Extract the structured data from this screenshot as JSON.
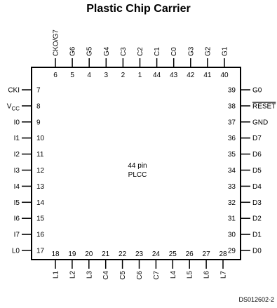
{
  "title": "Plastic Chip Carrier",
  "package": {
    "line1": "44 pin",
    "line2": "PLCC"
  },
  "figure_id": "DS012602-2",
  "pins": {
    "top": [
      {
        "num": "6",
        "sig": "CKO/G7"
      },
      {
        "num": "5",
        "sig": "G6"
      },
      {
        "num": "4",
        "sig": "G5"
      },
      {
        "num": "3",
        "sig": "G4"
      },
      {
        "num": "2",
        "sig": "C3"
      },
      {
        "num": "1",
        "sig": "C2"
      },
      {
        "num": "44",
        "sig": "C1"
      },
      {
        "num": "43",
        "sig": "C0"
      },
      {
        "num": "42",
        "sig": "G3"
      },
      {
        "num": "41",
        "sig": "G2"
      },
      {
        "num": "40",
        "sig": "G1"
      }
    ],
    "left": [
      {
        "num": "7",
        "sig": "CKI"
      },
      {
        "num": "8",
        "sig": "V",
        "sub": "CC"
      },
      {
        "num": "9",
        "sig": "I0"
      },
      {
        "num": "10",
        "sig": "I1"
      },
      {
        "num": "11",
        "sig": "I2"
      },
      {
        "num": "12",
        "sig": "I3"
      },
      {
        "num": "13",
        "sig": "I4"
      },
      {
        "num": "14",
        "sig": "I5"
      },
      {
        "num": "15",
        "sig": "I6"
      },
      {
        "num": "16",
        "sig": "I7"
      },
      {
        "num": "17",
        "sig": "L0"
      }
    ],
    "right": [
      {
        "num": "39",
        "sig": "G0"
      },
      {
        "num": "38",
        "sig": "RESET",
        "overline": true
      },
      {
        "num": "37",
        "sig": "GND"
      },
      {
        "num": "36",
        "sig": "D7"
      },
      {
        "num": "35",
        "sig": "D6"
      },
      {
        "num": "34",
        "sig": "D5"
      },
      {
        "num": "33",
        "sig": "D4"
      },
      {
        "num": "32",
        "sig": "D3"
      },
      {
        "num": "31",
        "sig": "D2"
      },
      {
        "num": "30",
        "sig": "D1"
      },
      {
        "num": "29",
        "sig": "D0"
      }
    ],
    "bottom": [
      {
        "num": "18",
        "sig": "L1"
      },
      {
        "num": "19",
        "sig": "L2"
      },
      {
        "num": "20",
        "sig": "L3"
      },
      {
        "num": "21",
        "sig": "C4"
      },
      {
        "num": "22",
        "sig": "C5"
      },
      {
        "num": "23",
        "sig": "C6"
      },
      {
        "num": "24",
        "sig": "C7"
      },
      {
        "num": "25",
        "sig": "L4"
      },
      {
        "num": "26",
        "sig": "L5"
      },
      {
        "num": "27",
        "sig": "L6"
      },
      {
        "num": "28",
        "sig": "L7"
      }
    ]
  }
}
